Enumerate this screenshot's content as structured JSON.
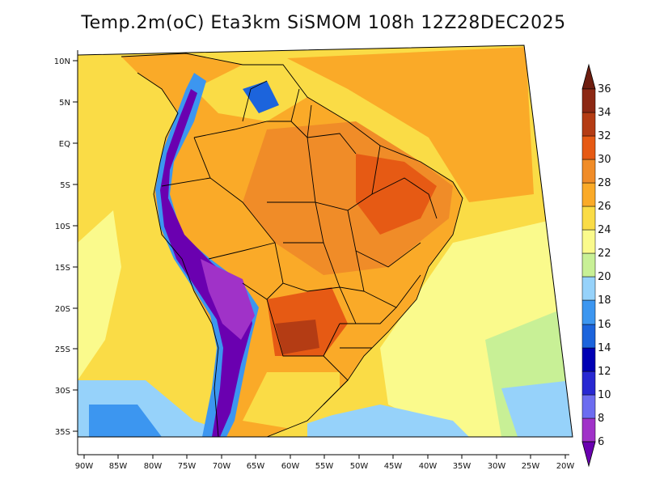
{
  "title": "Temp.2m(oC) Eta3km SiSMOM 108h 12Z28DEC2025",
  "axes": {
    "lat_labels": [
      "10N",
      "5N",
      "EQ",
      "5S",
      "10S",
      "15S",
      "20S",
      "25S",
      "30S",
      "35S"
    ],
    "lon_labels": [
      "90W",
      "85W",
      "80W",
      "75W",
      "70W",
      "65W",
      "60W",
      "55W",
      "50W",
      "45W",
      "40W",
      "35W",
      "30W",
      "25W",
      "20W"
    ]
  },
  "colorbar": {
    "labels": [
      "6",
      "8",
      "10",
      "12",
      "14",
      "16",
      "18",
      "20",
      "22",
      "24",
      "26",
      "28",
      "30",
      "32",
      "34",
      "36"
    ],
    "colors": [
      "#6a00b0",
      "#a032c8",
      "#6c6cf0",
      "#2828d2",
      "#0000b4",
      "#1c64dc",
      "#3c96f0",
      "#96d2fa",
      "#c8f096",
      "#fafa8c",
      "#fadc46",
      "#faaa28",
      "#f08c28",
      "#e65a14",
      "#b43c14",
      "#8c2814",
      "#6e1e10"
    ]
  }
}
